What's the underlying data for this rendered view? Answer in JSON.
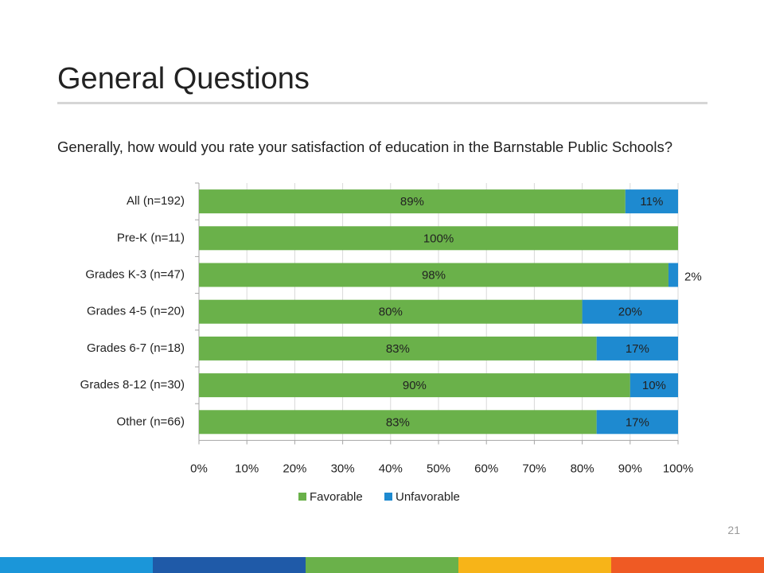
{
  "slide": {
    "title": "General Questions",
    "question": "Generally, how would you rate your satisfaction of education in the Barnstable Public Schools?",
    "page_number": "21"
  },
  "colors": {
    "favorable": "#6ab14a",
    "unfavorable": "#1e8ad0",
    "grid": "#d9d9d9",
    "axis": "#a6a6a6",
    "footer": [
      "#1b96d9",
      "#1f5aa8",
      "#6ab14a",
      "#f7b418",
      "#ef5a24"
    ]
  },
  "chart_data": {
    "type": "bar",
    "orientation": "horizontal",
    "stacked": true,
    "categories": [
      "All (n=192)",
      "Pre-K (n=11)",
      "Grades K-3 (n=47)",
      "Grades 4-5 (n=20)",
      "Grades 6-7 (n=18)",
      "Grades 8-12 (n=30)",
      "Other (n=66)"
    ],
    "series": [
      {
        "name": "Favorable",
        "values": [
          89,
          100,
          98,
          80,
          83,
          90,
          83
        ],
        "labels": [
          "89%",
          "100%",
          "98%",
          "80%",
          "83%",
          "90%",
          "83%"
        ]
      },
      {
        "name": "Unfavorable",
        "values": [
          11,
          0,
          2,
          20,
          17,
          10,
          17
        ],
        "labels": [
          "11%",
          "",
          "2%",
          "20%",
          "17%",
          "10%",
          "17%"
        ]
      }
    ],
    "xlim": [
      0,
      100
    ],
    "xticks": [
      "0%",
      "10%",
      "20%",
      "30%",
      "40%",
      "50%",
      "60%",
      "70%",
      "80%",
      "90%",
      "100%"
    ],
    "grid": true,
    "legend": "bottom"
  }
}
